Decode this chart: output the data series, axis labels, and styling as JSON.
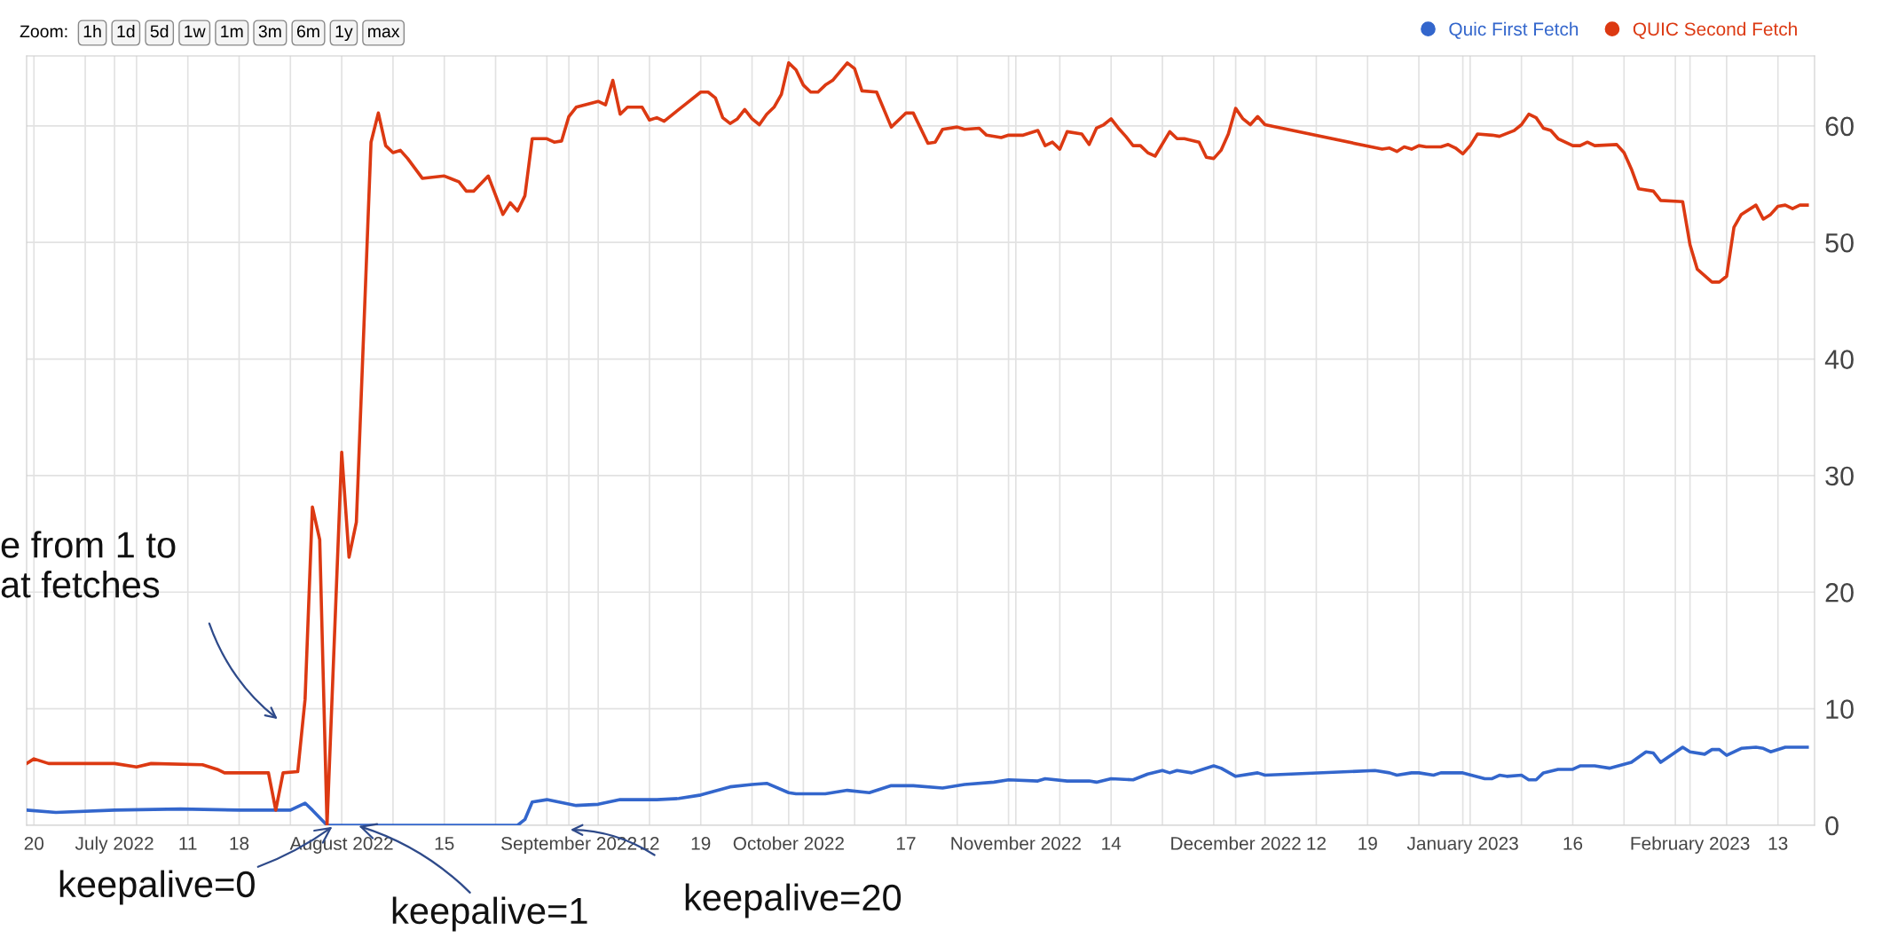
{
  "chart_data": {
    "type": "line",
    "xlim": [
      "2022-06-19",
      "2023-02-18"
    ],
    "ylim": [
      0,
      66
    ],
    "yticks": [
      0,
      10,
      20,
      30,
      40,
      50,
      60
    ],
    "xticks": [
      {
        "value": "2022-06-20",
        "label": "20"
      },
      {
        "value": "2022-06-27",
        "label": null
      },
      {
        "value": "2022-07-01",
        "label": "July 2022"
      },
      {
        "value": "2022-07-04",
        "label": null
      },
      {
        "value": "2022-07-11",
        "label": "11"
      },
      {
        "value": "2022-07-18",
        "label": "18"
      },
      {
        "value": "2022-07-25",
        "label": null
      },
      {
        "value": "2022-08-01",
        "label": "August 2022"
      },
      {
        "value": "2022-08-08",
        "label": null
      },
      {
        "value": "2022-08-15",
        "label": "15"
      },
      {
        "value": "2022-08-22",
        "label": null
      },
      {
        "value": "2022-08-29",
        "label": null
      },
      {
        "value": "2022-09-01",
        "label": "September 2022"
      },
      {
        "value": "2022-09-05",
        "label": null
      },
      {
        "value": "2022-09-12",
        "label": "12"
      },
      {
        "value": "2022-09-19",
        "label": "19"
      },
      {
        "value": "2022-09-26",
        "label": null
      },
      {
        "value": "2022-10-01",
        "label": "October 2022"
      },
      {
        "value": "2022-10-03",
        "label": null
      },
      {
        "value": "2022-10-10",
        "label": null
      },
      {
        "value": "2022-10-17",
        "label": "17"
      },
      {
        "value": "2022-10-24",
        "label": null
      },
      {
        "value": "2022-10-31",
        "label": null
      },
      {
        "value": "2022-11-01",
        "label": "November 2022"
      },
      {
        "value": "2022-11-07",
        "label": null
      },
      {
        "value": "2022-11-14",
        "label": "14"
      },
      {
        "value": "2022-11-21",
        "label": null
      },
      {
        "value": "2022-11-28",
        "label": null
      },
      {
        "value": "2022-12-01",
        "label": "December 2022"
      },
      {
        "value": "2022-12-05",
        "label": null
      },
      {
        "value": "2022-12-12",
        "label": "12"
      },
      {
        "value": "2022-12-19",
        "label": "19"
      },
      {
        "value": "2022-12-26",
        "label": null
      },
      {
        "value": "2023-01-01",
        "label": "January 2023"
      },
      {
        "value": "2023-01-02",
        "label": null
      },
      {
        "value": "2023-01-09",
        "label": null
      },
      {
        "value": "2023-01-16",
        "label": "16"
      },
      {
        "value": "2023-01-23",
        "label": null
      },
      {
        "value": "2023-01-30",
        "label": null
      },
      {
        "value": "2023-02-01",
        "label": "February 2023"
      },
      {
        "value": "2023-02-06",
        "label": null
      },
      {
        "value": "2023-02-13",
        "label": "13"
      }
    ],
    "grid": true,
    "legend": "top right",
    "marker": "none",
    "line_style": "solid",
    "series": [
      {
        "name": "Quic First Fetch",
        "color": "#3366cc",
        "x": [
          "2022-06-19",
          "2022-06-23",
          "2022-07-01",
          "2022-07-10",
          "2022-07-18",
          "2022-07-22",
          "2022-07-25",
          "2022-07-27",
          "2022-07-28",
          "2022-07-30",
          "2022-08-25",
          "2022-08-26",
          "2022-08-27",
          "2022-08-29",
          "2022-09-02",
          "2022-09-05",
          "2022-09-08",
          "2022-09-13",
          "2022-09-16",
          "2022-09-19",
          "2022-09-23",
          "2022-09-26",
          "2022-09-28",
          "2022-10-01",
          "2022-10-02",
          "2022-10-06",
          "2022-10-09",
          "2022-10-12",
          "2022-10-15",
          "2022-10-18",
          "2022-10-22",
          "2022-10-25",
          "2022-10-29",
          "2022-10-31",
          "2022-11-04",
          "2022-11-05",
          "2022-11-08",
          "2022-11-11",
          "2022-11-12",
          "2022-11-14",
          "2022-11-17",
          "2022-11-19",
          "2022-11-21",
          "2022-11-22",
          "2022-11-23",
          "2022-11-25",
          "2022-11-28",
          "2022-11-29",
          "2022-12-01",
          "2022-12-04",
          "2022-12-05",
          "2022-12-20",
          "2022-12-22",
          "2022-12-23",
          "2022-12-25",
          "2022-12-26",
          "2022-12-28",
          "2022-12-29",
          "2023-01-01",
          "2023-01-04",
          "2023-01-05",
          "2023-01-06",
          "2023-01-07",
          "2023-01-09",
          "2023-01-10",
          "2023-01-11",
          "2023-01-12",
          "2023-01-14",
          "2023-01-16",
          "2023-01-17",
          "2023-01-19",
          "2023-01-21",
          "2023-01-24",
          "2023-01-26",
          "2023-01-27",
          "2023-01-28",
          "2023-01-31",
          "2023-02-01",
          "2023-02-03",
          "2023-02-04",
          "2023-02-05",
          "2023-02-06",
          "2023-02-08",
          "2023-02-10",
          "2023-02-11",
          "2023-02-12",
          "2023-02-14",
          "2023-02-17"
        ],
        "values": [
          1.3,
          1.1,
          1.3,
          1.4,
          1.3,
          1.3,
          1.3,
          1.9,
          1.3,
          0,
          0,
          0.5,
          2.0,
          2.2,
          1.7,
          1.8,
          2.2,
          2.2,
          2.3,
          2.6,
          3.3,
          3.5,
          3.6,
          2.8,
          2.7,
          2.7,
          3.0,
          2.8,
          3.4,
          3.4,
          3.2,
          3.5,
          3.7,
          3.9,
          3.8,
          4.0,
          3.8,
          3.8,
          3.7,
          4.0,
          3.9,
          4.4,
          4.7,
          4.5,
          4.7,
          4.5,
          5.1,
          4.9,
          4.2,
          4.5,
          4.3,
          4.7,
          4.5,
          4.3,
          4.5,
          4.5,
          4.3,
          4.5,
          4.5,
          4.0,
          4.0,
          4.3,
          4.2,
          4.3,
          3.9,
          3.9,
          4.5,
          4.8,
          4.8,
          5.1,
          5.1,
          4.9,
          5.4,
          6.3,
          6.2,
          5.4,
          6.7,
          6.3,
          6.1,
          6.5,
          6.5,
          6.0,
          6.6,
          6.7,
          6.6,
          6.3,
          6.7,
          6.7
        ]
      },
      {
        "name": "QUIC Second Fetch",
        "color": "#dc3912",
        "x": [
          "2022-06-19",
          "2022-06-20",
          "2022-06-22",
          "2022-07-01",
          "2022-07-04",
          "2022-07-06",
          "2022-07-13",
          "2022-07-15",
          "2022-07-16",
          "2022-07-22",
          "2022-07-23",
          "2022-07-24",
          "2022-07-26",
          "2022-07-27",
          "2022-07-28",
          "2022-07-29",
          "2022-07-30",
          "2022-08-01",
          "2022-08-02",
          "2022-08-03",
          "2022-08-05",
          "2022-08-06",
          "2022-08-07",
          "2022-08-08",
          "2022-08-09",
          "2022-08-10",
          "2022-08-12",
          "2022-08-15",
          "2022-08-17",
          "2022-08-18",
          "2022-08-19",
          "2022-08-21",
          "2022-08-23",
          "2022-08-24",
          "2022-08-25",
          "2022-08-26",
          "2022-08-27",
          "2022-08-29",
          "2022-08-30",
          "2022-08-31",
          "2022-09-01",
          "2022-09-02",
          "2022-09-05",
          "2022-09-06",
          "2022-09-07",
          "2022-09-08",
          "2022-09-09",
          "2022-09-11",
          "2022-09-12",
          "2022-09-13",
          "2022-09-14",
          "2022-09-16",
          "2022-09-17",
          "2022-09-19",
          "2022-09-20",
          "2022-09-21",
          "2022-09-22",
          "2022-09-23",
          "2022-09-24",
          "2022-09-25",
          "2022-09-26",
          "2022-09-27",
          "2022-09-28",
          "2022-09-29",
          "2022-09-30",
          "2022-10-01",
          "2022-10-02",
          "2022-10-03",
          "2022-10-04",
          "2022-10-05",
          "2022-10-06",
          "2022-10-07",
          "2022-10-09",
          "2022-10-10",
          "2022-10-11",
          "2022-10-13",
          "2022-10-15",
          "2022-10-17",
          "2022-10-18",
          "2022-10-20",
          "2022-10-21",
          "2022-10-22",
          "2022-10-24",
          "2022-10-25",
          "2022-10-27",
          "2022-10-28",
          "2022-10-30",
          "2022-10-31",
          "2022-11-02",
          "2022-11-04",
          "2022-11-05",
          "2022-11-06",
          "2022-11-07",
          "2022-11-08",
          "2022-11-10",
          "2022-11-11",
          "2022-11-12",
          "2022-11-13",
          "2022-11-14",
          "2022-11-15",
          "2022-11-16",
          "2022-11-17",
          "2022-11-18",
          "2022-11-19",
          "2022-11-20",
          "2022-11-22",
          "2022-11-23",
          "2022-11-24",
          "2022-11-26",
          "2022-11-27",
          "2022-11-28",
          "2022-11-29",
          "2022-11-30",
          "2022-12-01",
          "2022-12-02",
          "2022-12-03",
          "2022-12-04",
          "2022-12-05",
          "2022-12-21",
          "2022-12-22",
          "2022-12-23",
          "2022-12-24",
          "2022-12-25",
          "2022-12-26",
          "2022-12-27",
          "2022-12-29",
          "2022-12-30",
          "2022-12-31",
          "2023-01-01",
          "2023-01-02",
          "2023-01-03",
          "2023-01-05",
          "2023-01-06",
          "2023-01-08",
          "2023-01-09",
          "2023-01-10",
          "2023-01-11",
          "2023-01-12",
          "2023-01-13",
          "2023-01-14",
          "2023-01-16",
          "2023-01-17",
          "2023-01-18",
          "2023-01-19",
          "2023-01-22",
          "2023-01-23",
          "2023-01-24",
          "2023-01-25",
          "2023-01-27",
          "2023-01-28",
          "2023-01-31",
          "2023-02-01",
          "2023-02-02",
          "2023-02-04",
          "2023-02-05",
          "2023-02-06",
          "2023-02-07",
          "2023-02-08",
          "2023-02-10",
          "2023-02-11",
          "2023-02-12",
          "2023-02-13",
          "2023-02-14",
          "2023-02-15",
          "2023-02-16",
          "2023-02-17"
        ],
        "values": [
          5.3,
          5.7,
          5.3,
          5.3,
          5.0,
          5.3,
          5.2,
          4.8,
          4.5,
          4.5,
          1.3,
          4.5,
          4.6,
          10.8,
          27.3,
          24.5,
          0,
          32,
          23,
          26,
          58.6,
          61.1,
          58.3,
          57.7,
          57.9,
          57.2,
          55.5,
          55.7,
          55.2,
          54.4,
          54.4,
          55.7,
          52.4,
          53.4,
          52.7,
          54.0,
          58.9,
          58.9,
          58.6,
          58.7,
          60.8,
          61.6,
          62.1,
          61.8,
          63.9,
          61.0,
          61.6,
          61.6,
          60.5,
          60.7,
          60.4,
          61.4,
          61.9,
          62.9,
          62.9,
          62.4,
          60.7,
          60.2,
          60.6,
          61.4,
          60.6,
          60.1,
          61.0,
          61.6,
          62.7,
          65.4,
          64.8,
          63.5,
          62.9,
          62.9,
          63.5,
          63.9,
          65.4,
          64.9,
          63.0,
          62.9,
          59.9,
          61.1,
          61.1,
          58.5,
          58.6,
          59.7,
          59.9,
          59.7,
          59.8,
          59.2,
          59.0,
          59.2,
          59.2,
          59.6,
          58.3,
          58.6,
          58.0,
          59.5,
          59.3,
          58.4,
          59.8,
          60.1,
          60.6,
          59.8,
          59.1,
          58.3,
          58.3,
          57.7,
          57.4,
          59.5,
          58.9,
          58.9,
          58.6,
          57.3,
          57.2,
          57.9,
          59.3,
          61.5,
          60.6,
          60.1,
          60.8,
          60.1,
          58.0,
          58.1,
          57.8,
          58.2,
          58.0,
          58.3,
          58.2,
          58.2,
          58.4,
          58.1,
          57.6,
          58.3,
          59.3,
          59.2,
          59.1,
          59.6,
          60.1,
          61.0,
          60.7,
          59.8,
          59.6,
          58.9,
          58.3,
          58.3,
          58.6,
          58.3,
          58.4,
          57.7,
          56.3,
          54.6,
          54.4,
          53.6,
          53.5,
          49.8,
          47.7,
          46.6,
          46.6,
          47.1,
          51.3,
          52.4,
          53.2,
          52.0,
          52.4,
          53.1,
          53.2,
          52.9,
          53.2,
          53.2
        ]
      }
    ],
    "annotations": [
      "Zoom:",
      "1h",
      "1d",
      "5d",
      "1w",
      "1m",
      "3m",
      "6m",
      "1y",
      "max",
      "e from 1 to\nat fetches",
      {
        "text": "keepalive=0",
        "x": "2022-07-31",
        "y": 0
      },
      {
        "text": "keepalive=1",
        "x": "2022-08-03",
        "y": 0
      },
      "keepalive=20"
    ]
  }
}
